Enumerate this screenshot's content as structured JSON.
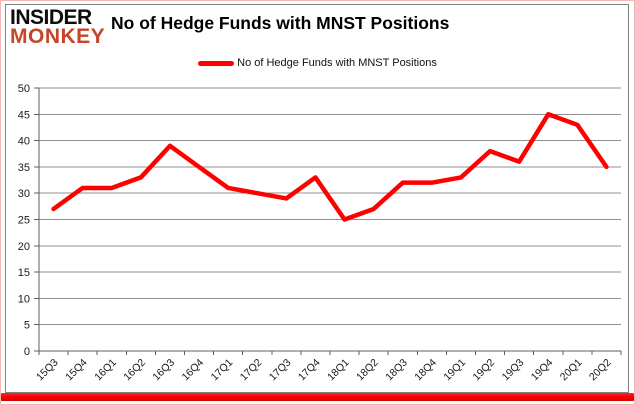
{
  "brand": {
    "line1": "INSIDER",
    "line2": "MONKEY",
    "color": "#c4452a"
  },
  "header": {
    "title": "No of Hedge Funds with MNST Positions"
  },
  "legend": {
    "label": "No of Hedge Funds with MNST Positions",
    "swatch_color": "#ff0000"
  },
  "chart_data": {
    "type": "line",
    "title": "No of Hedge Funds with MNST Positions",
    "categories": [
      "15Q3",
      "15Q4",
      "16Q1",
      "16Q2",
      "16Q3",
      "16Q4",
      "17Q1",
      "17Q2",
      "17Q3",
      "17Q4",
      "18Q1",
      "18Q2",
      "18Q3",
      "18Q4",
      "19Q1",
      "19Q2",
      "19Q3",
      "19Q4",
      "20Q1",
      "20Q2"
    ],
    "series": [
      {
        "name": "No of Hedge Funds with MNST Positions",
        "color": "#ff0000",
        "values": [
          27,
          31,
          31,
          33,
          39,
          35,
          31,
          30,
          29,
          33,
          25,
          27,
          32,
          32,
          33,
          38,
          36,
          45,
          43,
          35
        ]
      }
    ],
    "xlabel": "",
    "ylabel": "",
    "ylim": [
      0,
      50
    ],
    "yticks": [
      0,
      5,
      10,
      15,
      20,
      25,
      30,
      35,
      40,
      45,
      50
    ],
    "grid": true,
    "legend_position": "top-center",
    "x_label_rotation": -45
  },
  "colors": {
    "accent_red": "#ff0000",
    "gridline": "#8f8f8f",
    "axis": "#5f5f5f",
    "tick_label": "#1a1a1a",
    "frame": "#7f7f7f",
    "outer_border": "#f3b6b6",
    "bottom_bar_top": "#ff2a2a",
    "bottom_bar_bottom": "#d40000"
  }
}
